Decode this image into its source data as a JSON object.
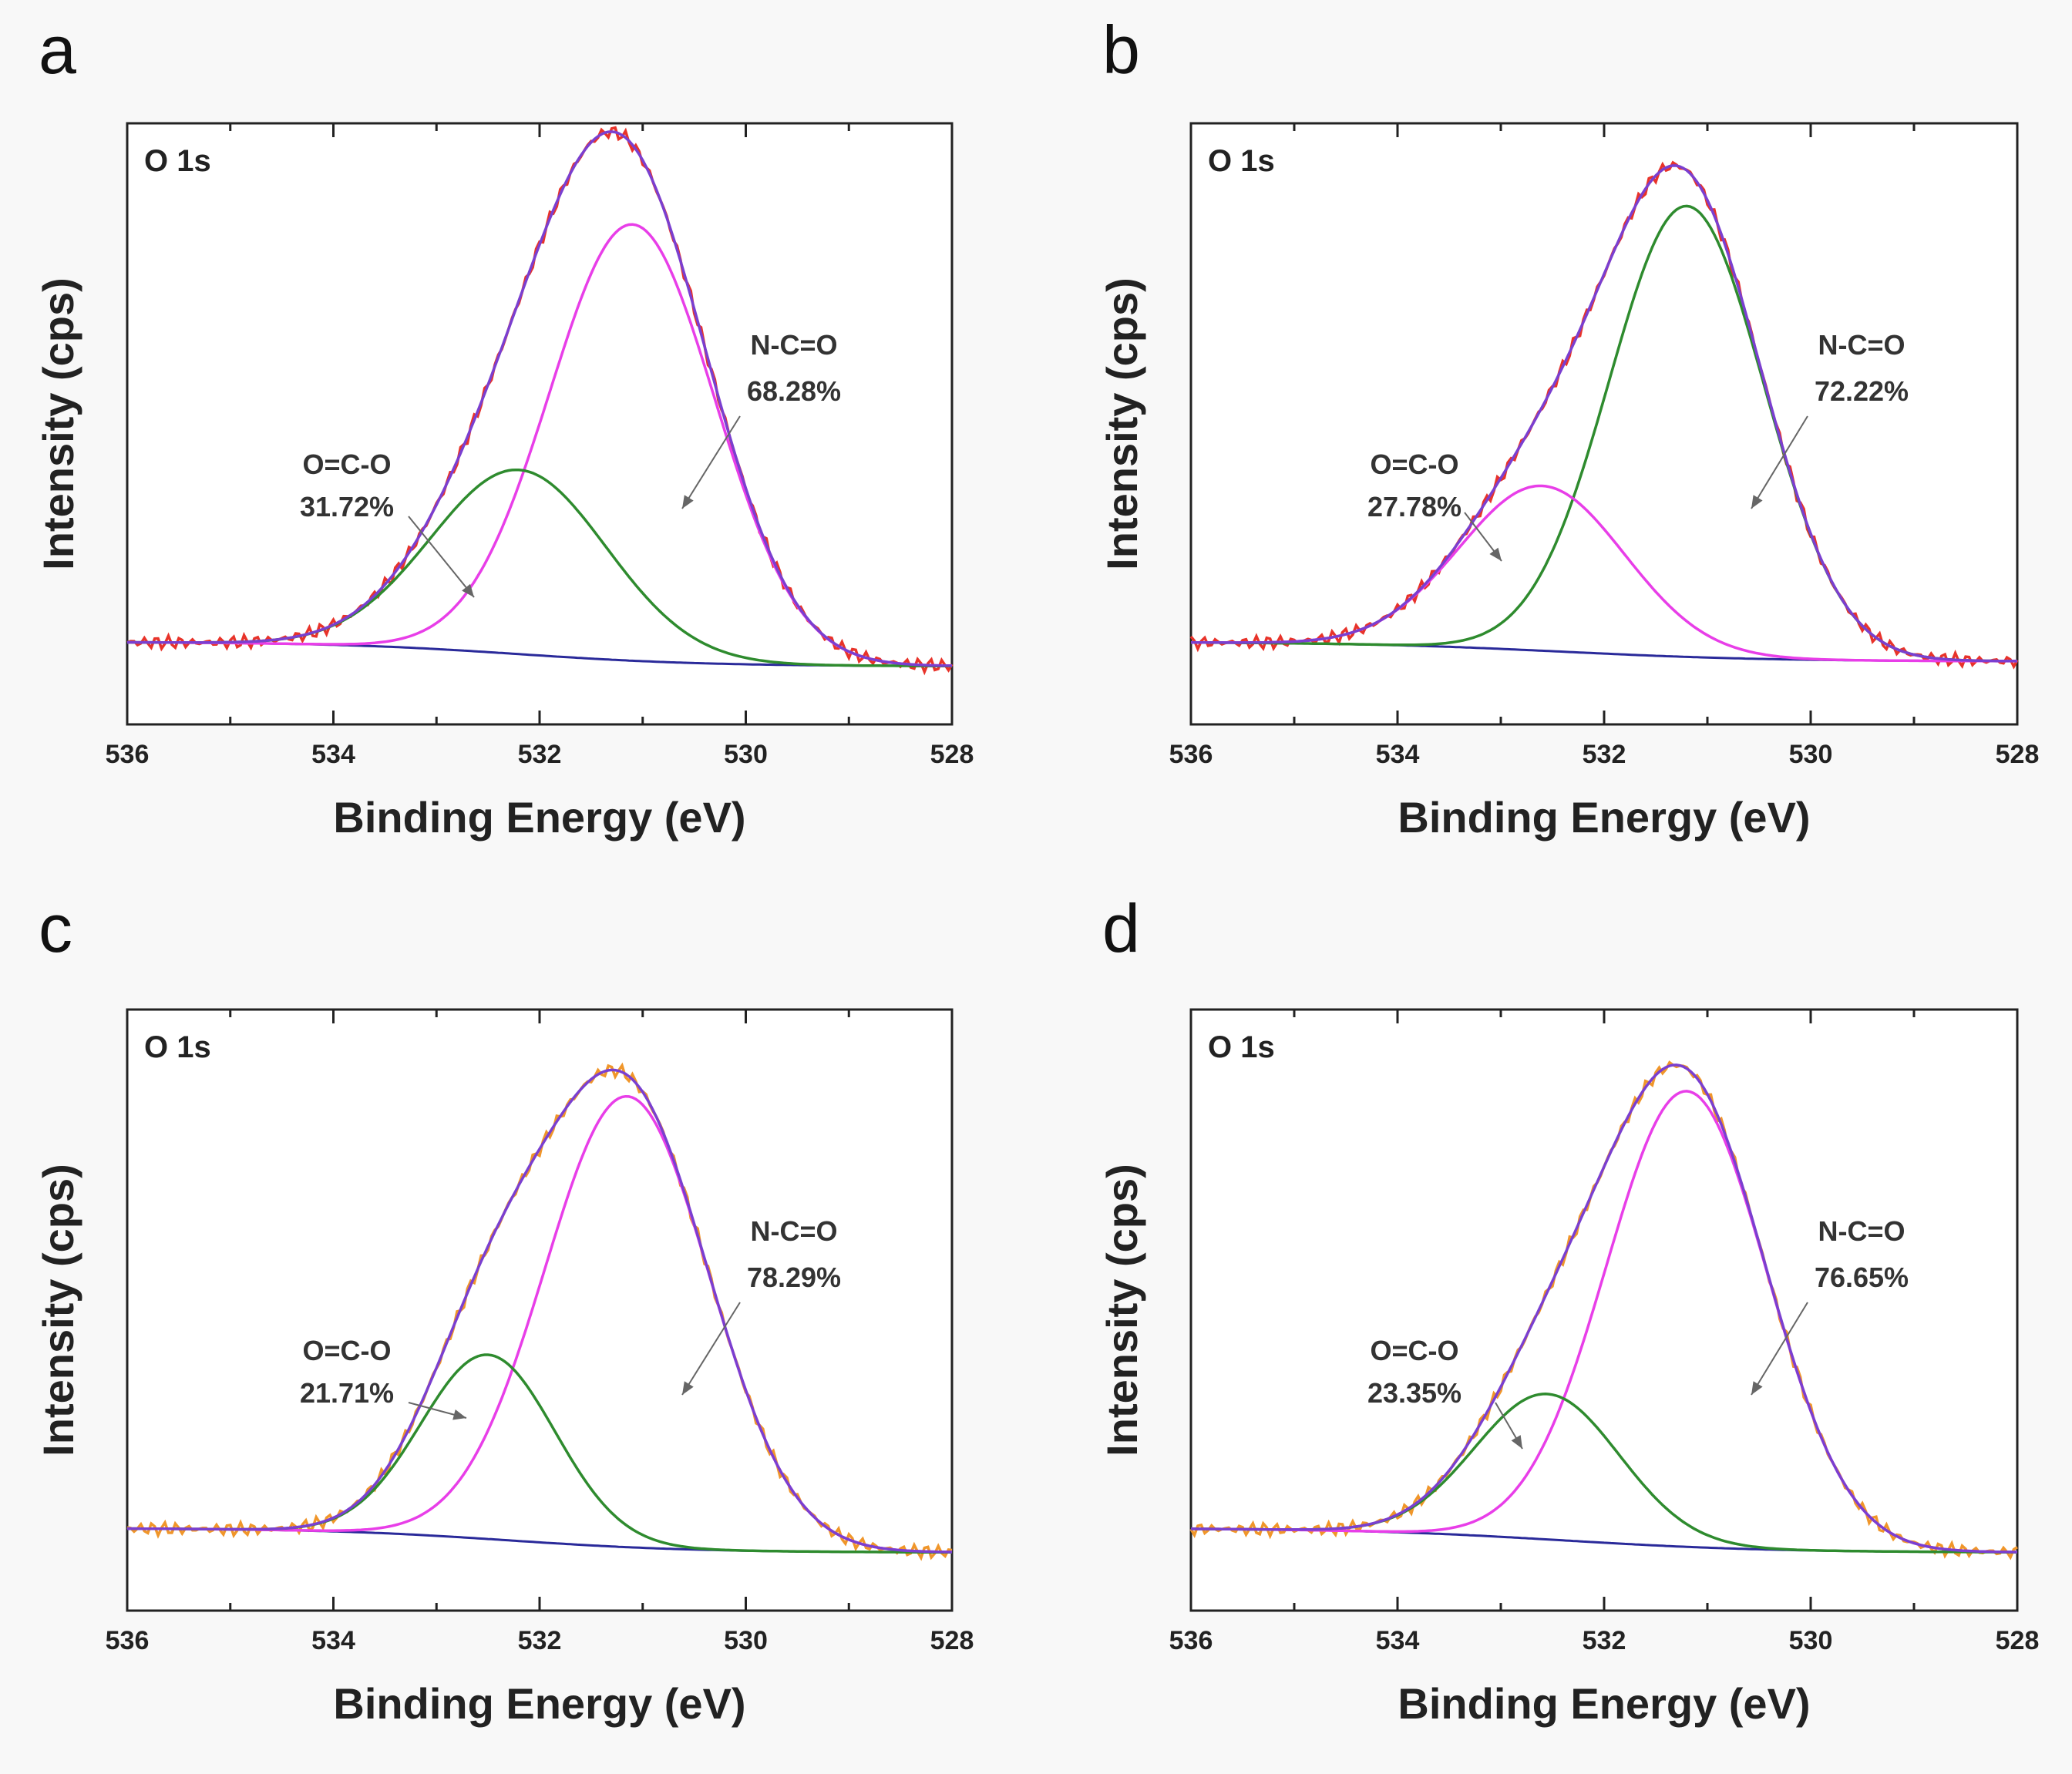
{
  "figure": {
    "background": "#f8f8f8",
    "colors": {
      "frame": "#222222",
      "baseline": "#2a2a9a",
      "envelope": "#7a3fd0",
      "ncoo": "#e83ee8",
      "occo_green": "#2e8b2e",
      "raw_red": "#e8332a",
      "raw_orange": "#f0962a",
      "arrow": "#666666"
    }
  },
  "chart_data": [
    {
      "type": "line",
      "panel": "a",
      "title": "O 1s",
      "xlabel": "Binding Energy (eV)",
      "ylabel": "Intensity (cps)",
      "xlim": [
        536,
        528
      ],
      "ylim": [
        -0.12,
        1.12
      ],
      "xticks": [
        "536",
        "534",
        "532",
        "530",
        "528"
      ],
      "grid": false,
      "raw_color": "raw_red",
      "baseline": {
        "left": 0.05,
        "right": 0.0,
        "center": 532.2,
        "width": 0.9
      },
      "components": [
        {
          "name": "N-C=O",
          "center": 531.1,
          "amplitude": 0.9,
          "sigma": 0.8,
          "color": "ncoo"
        },
        {
          "name": "O=C-O",
          "center": 532.2,
          "amplitude": 0.38,
          "sigma": 0.85,
          "color": "occo_green"
        }
      ],
      "annotations": [
        {
          "name": "N-C=O",
          "percent": "68.28%"
        },
        {
          "name": "O=C-O",
          "percent": "31.72%"
        }
      ]
    },
    {
      "type": "line",
      "panel": "b",
      "title": "O 1s",
      "xlabel": "Binding Energy (eV)",
      "ylabel": "Intensity (cps)",
      "xlim": [
        536,
        528
      ],
      "ylim": [
        -0.12,
        1.12
      ],
      "xticks": [
        "536",
        "534",
        "532",
        "530",
        "528"
      ],
      "grid": false,
      "raw_color": "raw_red",
      "baseline": {
        "left": 0.05,
        "right": 0.01,
        "center": 532.4,
        "width": 1.0
      },
      "components": [
        {
          "name": "N-C=O",
          "center": 531.2,
          "amplitude": 0.93,
          "sigma": 0.75,
          "color": "occo_green"
        },
        {
          "name": "O=C-O",
          "center": 532.6,
          "amplitude": 0.34,
          "sigma": 0.8,
          "color": "ncoo"
        }
      ],
      "annotations": [
        {
          "name": "N-C=O",
          "percent": "72.22%"
        },
        {
          "name": "O=C-O",
          "percent": "27.78%"
        }
      ]
    },
    {
      "type": "line",
      "panel": "c",
      "title": "O 1s",
      "xlabel": "Binding Energy (eV)",
      "ylabel": "Intensity (cps)",
      "xlim": [
        536,
        528
      ],
      "ylim": [
        -0.12,
        1.12
      ],
      "xticks": [
        "536",
        "534",
        "532",
        "530",
        "528"
      ],
      "grid": false,
      "raw_color": "raw_orange",
      "baseline": {
        "left": 0.05,
        "right": 0.0,
        "center": 532.3,
        "width": 0.9
      },
      "components": [
        {
          "name": "N-C=O",
          "center": 531.15,
          "amplitude": 0.93,
          "sigma": 0.8,
          "color": "ncoo"
        },
        {
          "name": "O=C-O",
          "center": 532.5,
          "amplitude": 0.38,
          "sigma": 0.65,
          "color": "occo_green"
        }
      ],
      "annotations": [
        {
          "name": "N-C=O",
          "percent": "78.29%"
        },
        {
          "name": "O=C-O",
          "percent": "21.71%"
        }
      ]
    },
    {
      "type": "line",
      "panel": "d",
      "title": "O 1s",
      "xlabel": "Binding Energy (eV)",
      "ylabel": "Intensity (cps)",
      "xlim": [
        536,
        528
      ],
      "ylim": [
        -0.12,
        1.12
      ],
      "xticks": [
        "536",
        "534",
        "532",
        "530",
        "528"
      ],
      "grid": false,
      "raw_color": "raw_orange",
      "baseline": {
        "left": 0.05,
        "right": 0.0,
        "center": 532.4,
        "width": 1.0
      },
      "components": [
        {
          "name": "N-C=O",
          "center": 531.2,
          "amplitude": 0.94,
          "sigma": 0.78,
          "color": "ncoo"
        },
        {
          "name": "O=C-O",
          "center": 532.55,
          "amplitude": 0.3,
          "sigma": 0.7,
          "color": "occo_green"
        }
      ],
      "annotations": [
        {
          "name": "N-C=O",
          "percent": "76.65%"
        },
        {
          "name": "O=C-O",
          "percent": "23.35%"
        }
      ]
    }
  ]
}
